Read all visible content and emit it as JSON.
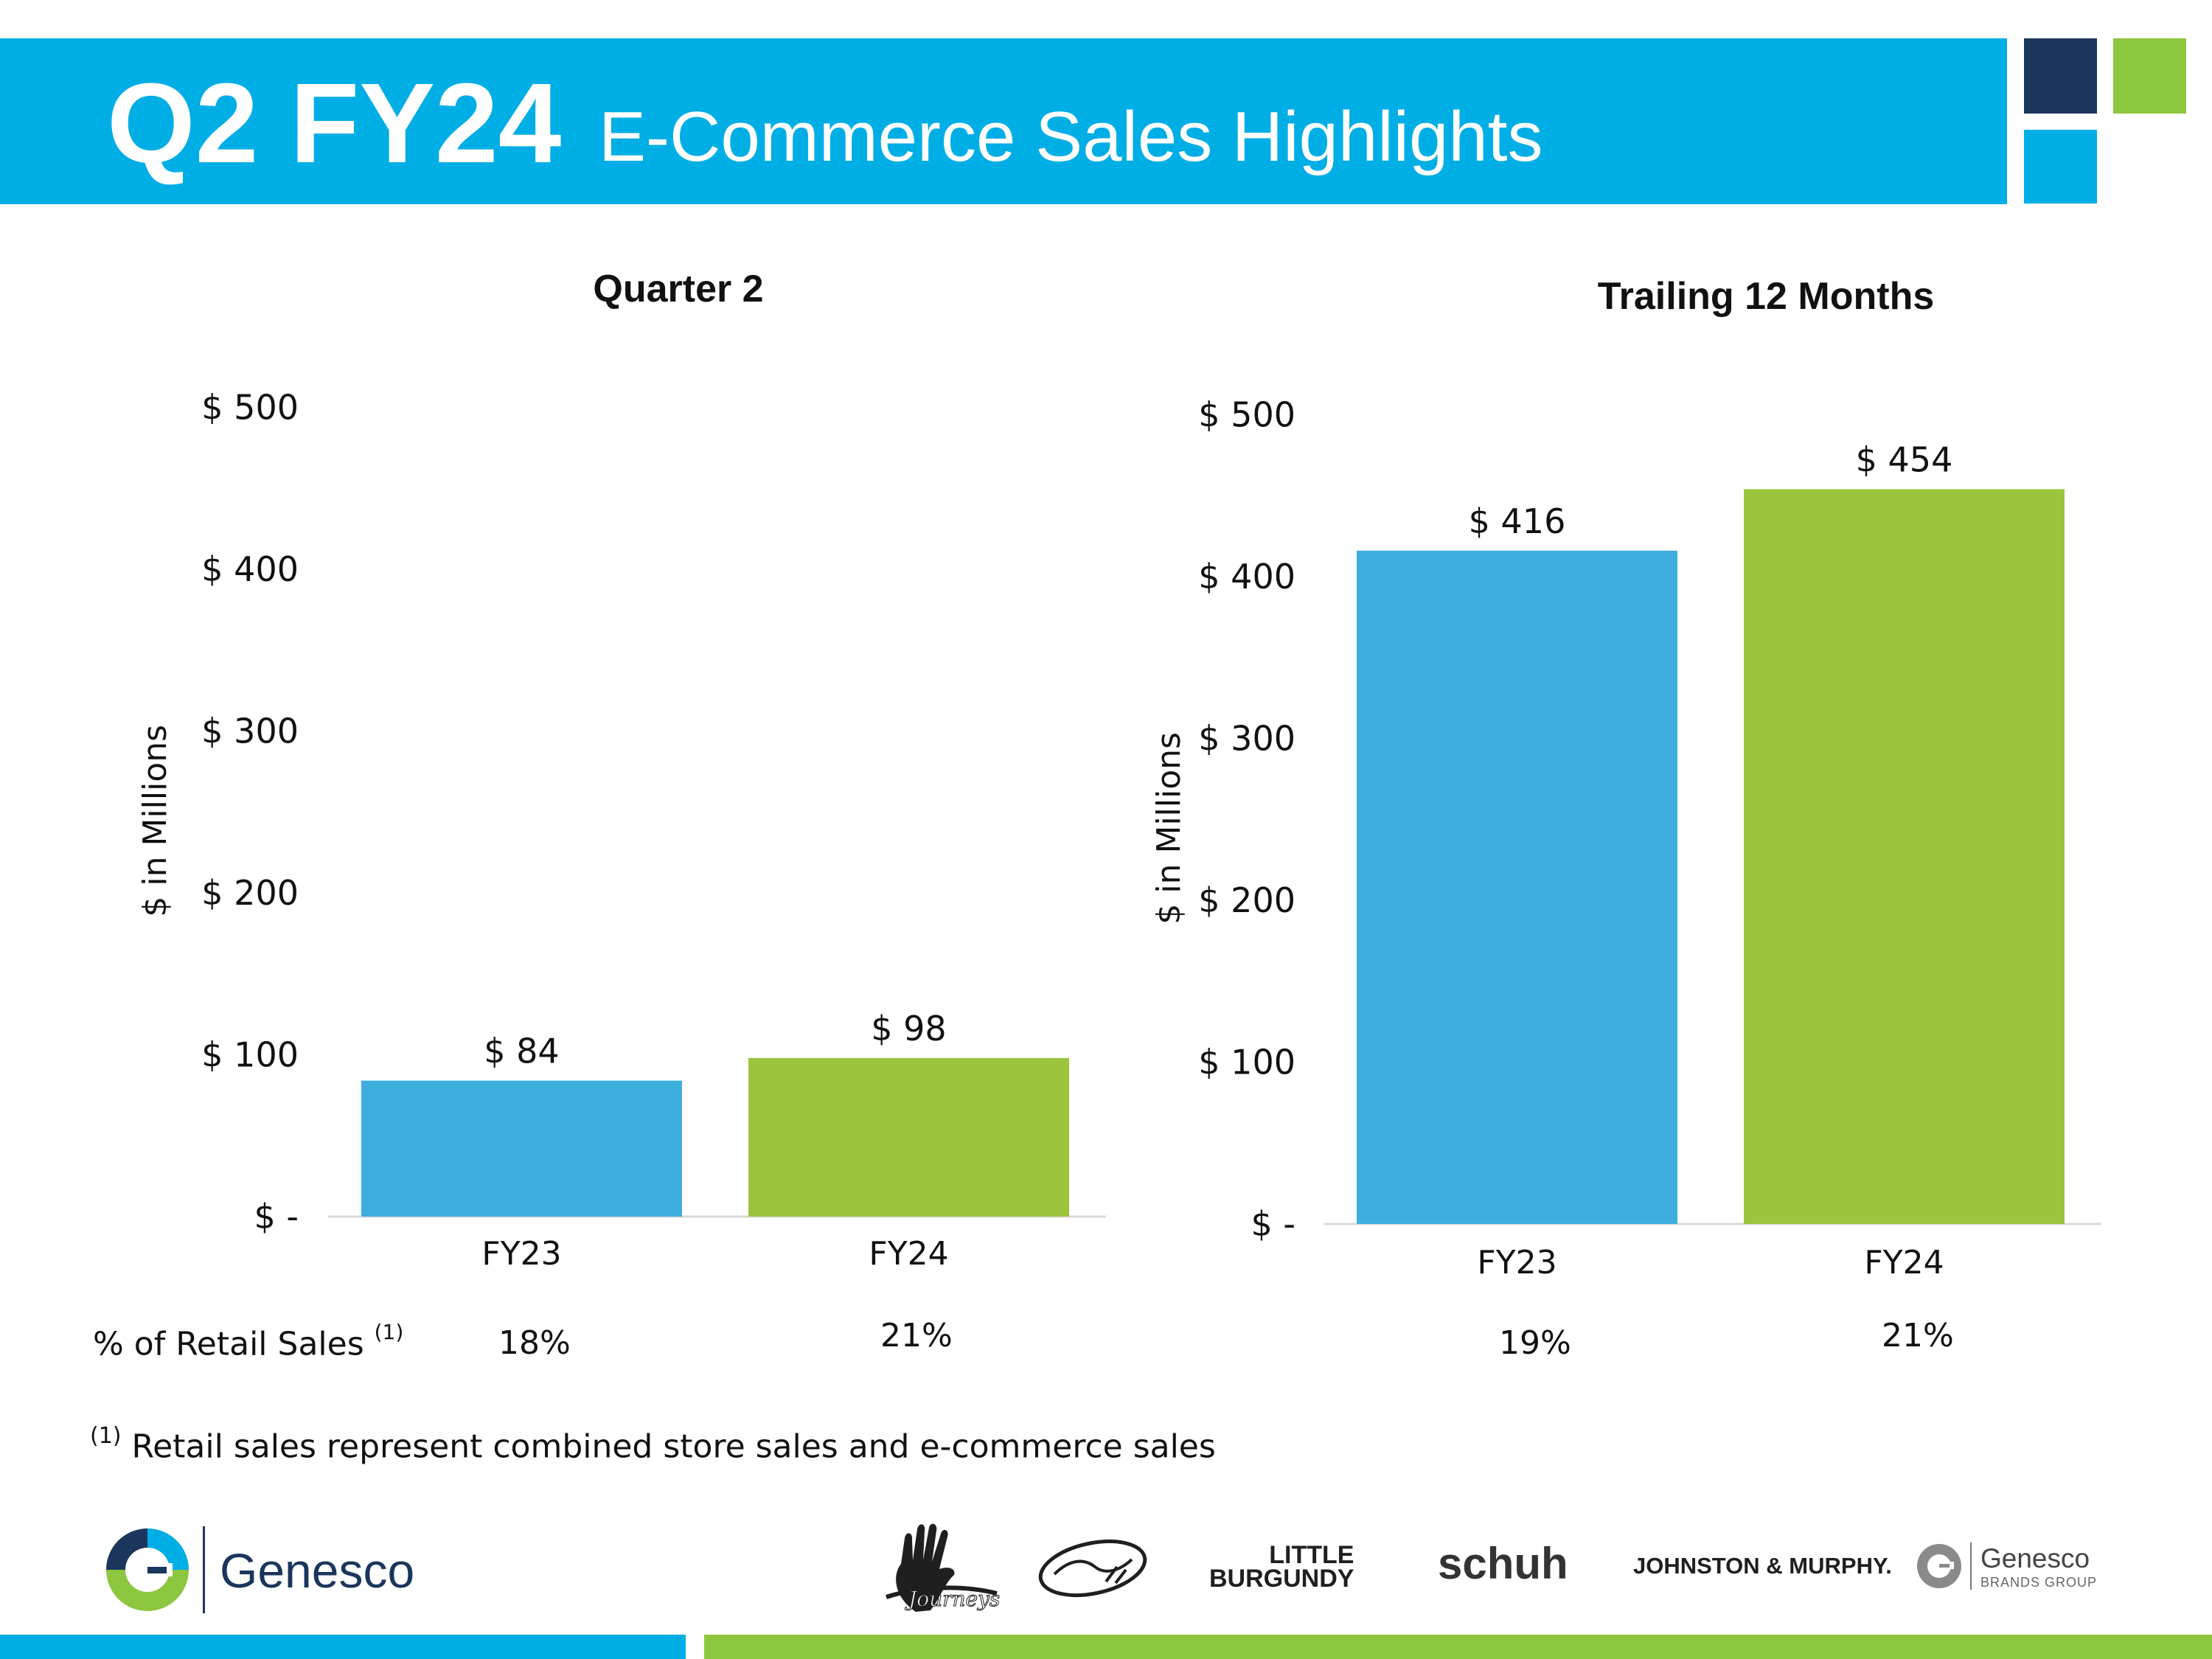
{
  "header": {
    "title_main": "Q2 FY24",
    "title_sub": "E-Commerce Sales Highlights"
  },
  "colors": {
    "header_blue": "#00aee6",
    "navy": "#1b365d",
    "green": "#8dc63f",
    "bar_fy23": "#3dadde",
    "bar_fy24": "#9bc53d"
  },
  "chart_data": [
    {
      "type": "bar",
      "title": "Quarter 2",
      "ylabel": "$ in Millions",
      "categories": [
        "FY23",
        "FY24"
      ],
      "values": [
        84,
        98
      ],
      "value_labels": [
        "$ 84",
        "$ 98"
      ],
      "yticks": [
        0,
        100,
        200,
        300,
        400,
        500
      ],
      "ytick_labels": [
        "$ -",
        "$ 100",
        "$ 200",
        "$ 300",
        "$ 400",
        "$ 500"
      ],
      "ylim": [
        0,
        500
      ],
      "pct_of_retail": [
        "18%",
        "21%"
      ],
      "grid": false,
      "legend": "none"
    },
    {
      "type": "bar",
      "title": "Trailing 12 Months",
      "ylabel": "$ in Millions",
      "categories": [
        "FY23",
        "FY24"
      ],
      "values": [
        416,
        454
      ],
      "value_labels": [
        "$ 416",
        "$ 454"
      ],
      "yticks": [
        0,
        100,
        200,
        300,
        400,
        500
      ],
      "ytick_labels": [
        "$ -",
        "$ 100",
        "$ 200",
        "$ 300",
        "$ 400",
        "$ 500"
      ],
      "ylim": [
        0,
        500
      ],
      "pct_of_retail": [
        "19%",
        "21%"
      ],
      "grid": false,
      "legend": "none"
    }
  ],
  "pct_row_label": "% of Retail Sales",
  "footnote": {
    "marker": "(1)",
    "text": "Retail sales represent combined store sales and e-commerce sales"
  },
  "footer": {
    "genesco": "Genesco",
    "little_burgundy_line1": "LITTLE",
    "little_burgundy_line2": "BURGUNDY",
    "schuh": "schuh",
    "johnston_murphy": "JOHNSTON & MURPHY.",
    "gbg_name": "Genesco",
    "gbg_sub": "BRANDS GROUP"
  }
}
